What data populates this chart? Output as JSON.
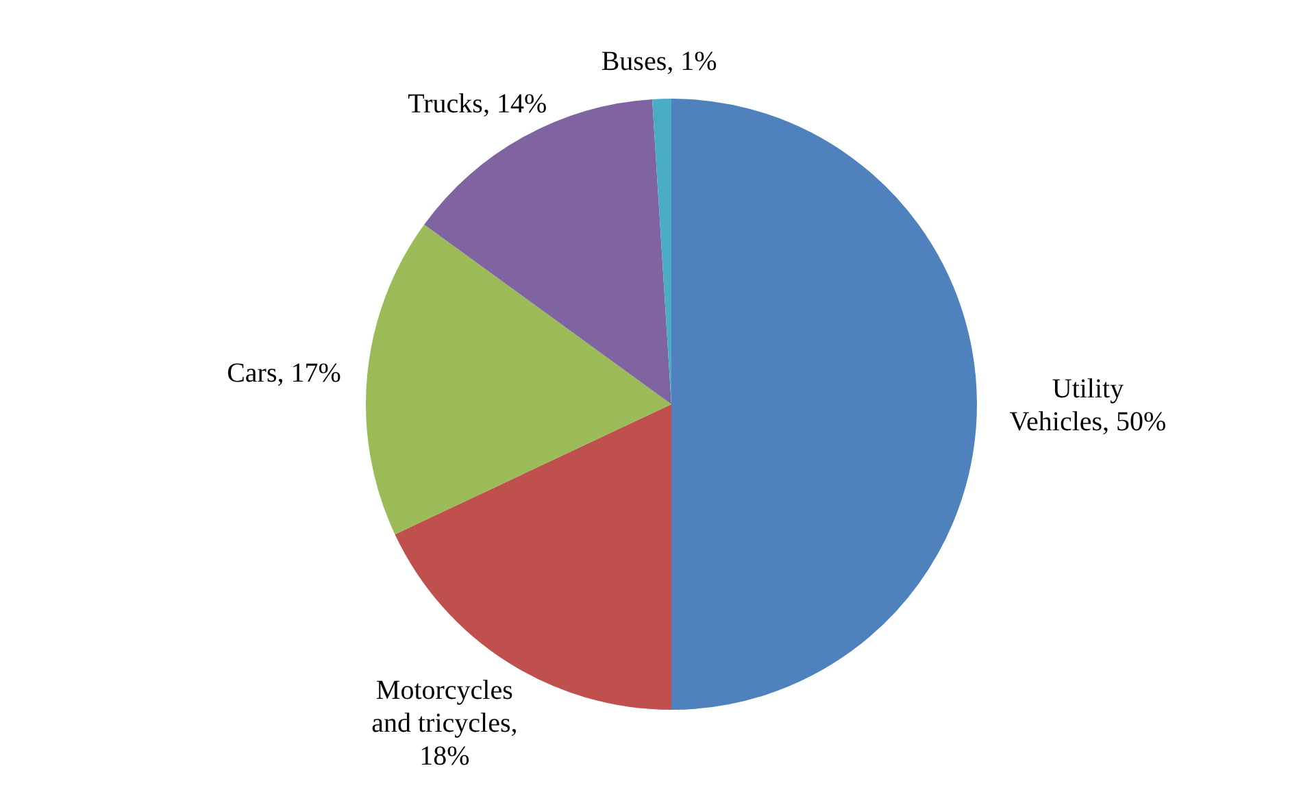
{
  "chart_data": {
    "type": "pie",
    "categories": [
      "Utility Vehicles, 50%",
      "Motorcycles and tricycles, 18%",
      "Cars, 17%",
      "Trucks, 14%",
      "Buses, 1%"
    ],
    "values": [
      50,
      18,
      17,
      14,
      1
    ],
    "colors": [
      "#4f81bd",
      "#c0504d",
      "#9bbb59",
      "#8064a2",
      "#4bacc6"
    ]
  }
}
